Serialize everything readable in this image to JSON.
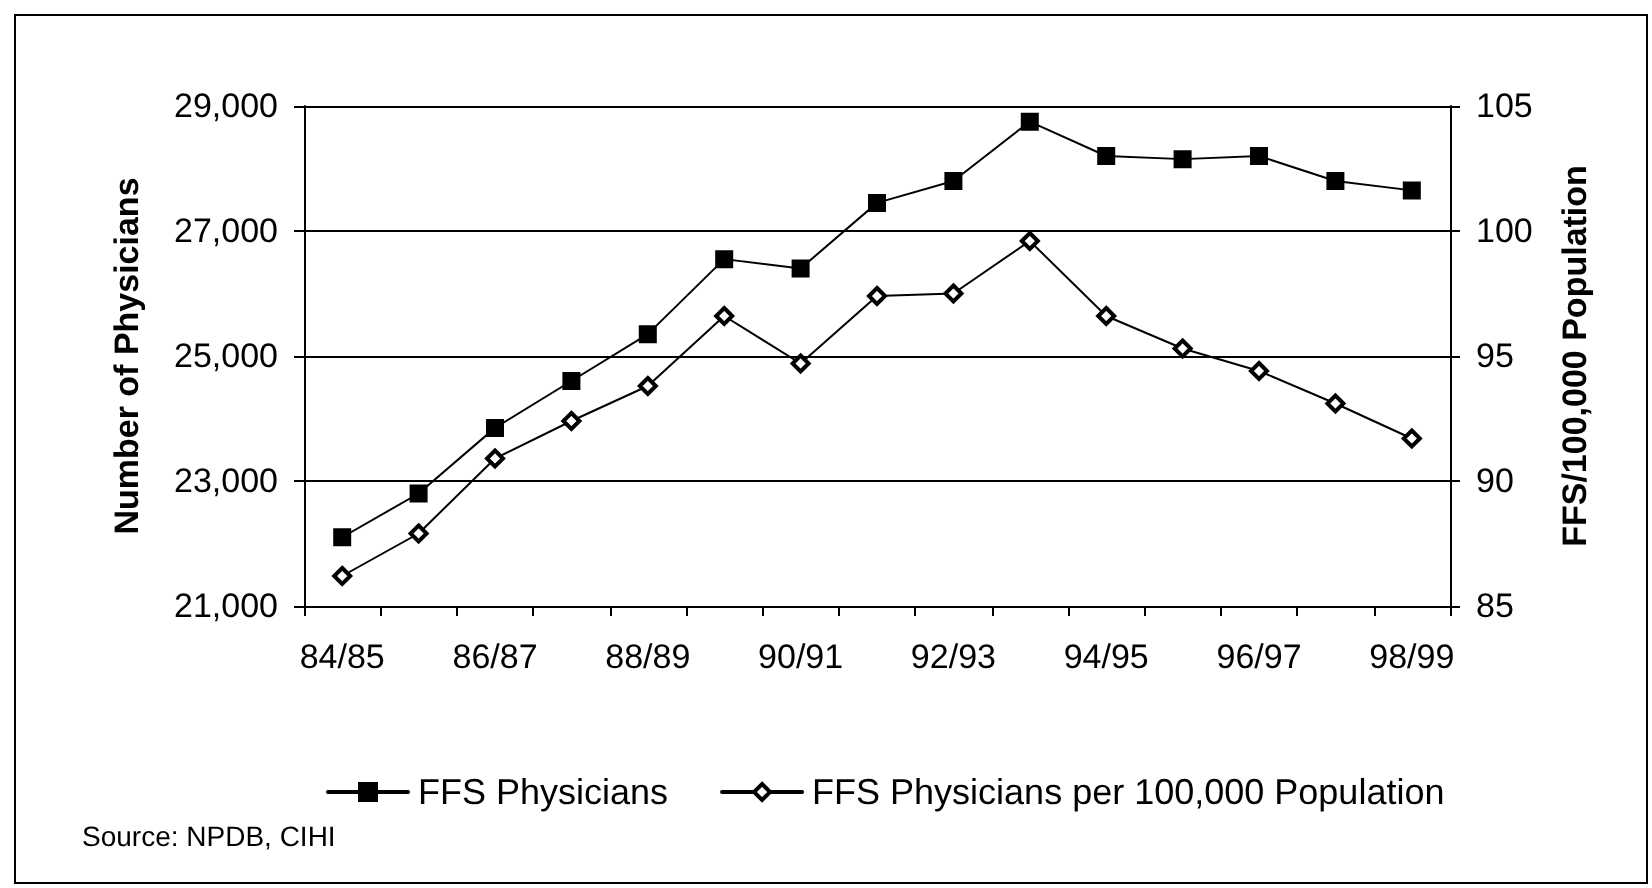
{
  "chart_data": {
    "type": "line",
    "categories": [
      "84/85",
      null,
      "86/87",
      null,
      "88/89",
      null,
      "90/91",
      null,
      "92/93",
      null,
      "94/95",
      null,
      "96/97",
      null,
      "98/99"
    ],
    "series": [
      {
        "name": "FFS Physicians",
        "color": "#000000",
        "marker": "square",
        "values": [
          22100,
          22800,
          23850,
          24600,
          25350,
          26550,
          26400,
          27450,
          27800,
          28750,
          28200,
          28150,
          28200,
          27800,
          27650
        ]
      },
      {
        "name": "FFS Physicians per 100,000 Population",
        "color": "#000000",
        "marker": "diamond",
        "axis": "y2",
        "values": [
          86.2,
          87.9,
          90.9,
          92.4,
          93.8,
          96.6,
          94.7,
          97.4,
          97.5,
          99.6,
          96.6,
          95.3,
          94.4,
          93.1,
          91.7
        ]
      }
    ],
    "ylabel": "Number of Physicians",
    "y2label": "FFS/100,000 Population",
    "ylim": [
      21000,
      29000
    ],
    "yticks": [
      {
        "value": 21000,
        "label": "21,000"
      },
      {
        "value": 23000,
        "label": "23,000"
      },
      {
        "value": 25000,
        "label": "25,000"
      },
      {
        "value": 27000,
        "label": "27,000"
      },
      {
        "value": 29000,
        "label": "29,000"
      }
    ],
    "y2lim": [
      85,
      105
    ],
    "y2ticks": [
      85,
      90,
      95,
      100,
      105
    ],
    "grid": "y",
    "legend": "bottom",
    "line_style": "solid",
    "annotations": [
      "Source: NPDB, CIHI"
    ]
  }
}
